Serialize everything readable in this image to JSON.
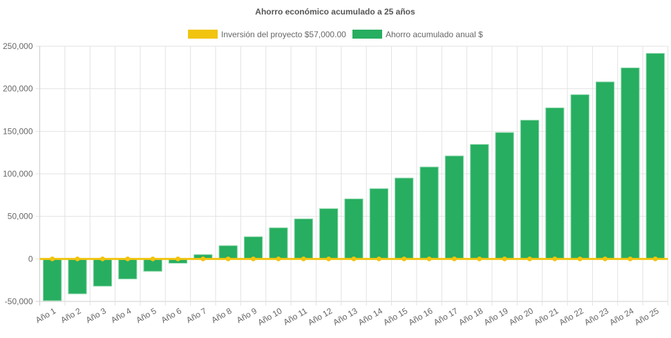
{
  "chart_data": {
    "type": "bar",
    "title": "Ahorro económico acumulado a 25 años",
    "xlabel": "",
    "ylabel": "",
    "ylim": [
      -50000,
      250000
    ],
    "yticks": [
      -50000,
      0,
      50000,
      100000,
      150000,
      200000,
      250000
    ],
    "ytick_labels": [
      "-50,000",
      "0",
      "50,000",
      "100,000",
      "150,000",
      "200,000",
      "250,000"
    ],
    "grid": true,
    "legend_position": "top",
    "categories": [
      "Año 1",
      "Año 2",
      "Año 3",
      "Año 4",
      "Año 5",
      "Año 6",
      "Año 7",
      "Año 8",
      "Año 9",
      "Año 10",
      "Año 11",
      "Año 12",
      "Año 13",
      "Año 14",
      "Año 15",
      "Año 16",
      "Año 17",
      "Año 18",
      "Año 19",
      "Año 20",
      "Año 21",
      "Año 22",
      "Año 23",
      "Año 24",
      "Año 25"
    ],
    "series": [
      {
        "name": "Inversión del proyecto $57,000.00",
        "type": "line",
        "color": "#f1c40f",
        "values": [
          0,
          0,
          0,
          0,
          0,
          0,
          0,
          0,
          0,
          0,
          0,
          0,
          0,
          0,
          0,
          0,
          0,
          0,
          0,
          0,
          0,
          0,
          0,
          0,
          0
        ]
      },
      {
        "name": "Ahorro acumulado anual $",
        "type": "bar",
        "color": "#27ae60",
        "values": [
          -49000,
          -41000,
          -32000,
          -23500,
          -14500,
          -5000,
          5000,
          15500,
          26000,
          36500,
          47000,
          59000,
          70500,
          82500,
          95000,
          108000,
          121000,
          134500,
          148500,
          163000,
          177500,
          193000,
          208000,
          224500,
          241500
        ]
      }
    ]
  }
}
